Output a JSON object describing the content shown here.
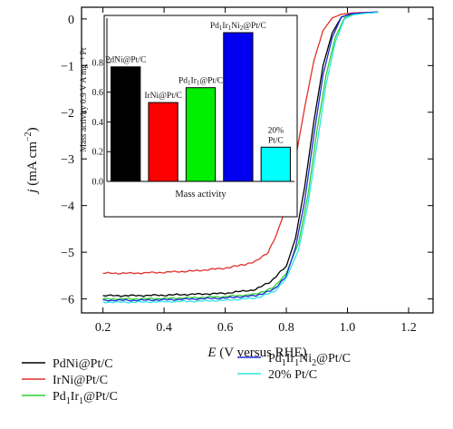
{
  "chart_data": [
    {
      "type": "line",
      "xlabel_symbol": "E",
      "xlabel_unit": "(V versus RHE)",
      "ylabel_symbol": "j",
      "ylabel_unit": "(mA cm",
      "ylabel_exp": "−2",
      "ylabel_close": ")",
      "xlim": [
        0.13,
        1.28
      ],
      "ylim": [
        -6.3,
        0.25
      ],
      "x_ticks": [
        0.2,
        0.4,
        0.6,
        0.8,
        1.0,
        1.2
      ],
      "x_tick_labels": [
        "0.2",
        "0.4",
        "0.6",
        "0.8",
        "1.0",
        "1.2"
      ],
      "y_ticks": [
        0,
        -1,
        -2,
        -3,
        -4,
        -5,
        -6
      ],
      "y_tick_labels": [
        "0",
        "−1",
        "−2",
        "−3",
        "−4",
        "−5",
        "−6"
      ],
      "legend_placement": "bottom",
      "series": [
        {
          "name": "PdNi@Pt/C",
          "name_parts": [
            [
              "PdNi@Pt/C",
              ""
            ]
          ],
          "color": "#000000",
          "x": [
            0.2,
            0.3,
            0.4,
            0.5,
            0.6,
            0.7,
            0.75,
            0.8,
            0.83,
            0.86,
            0.89,
            0.92,
            0.95,
            0.98,
            1.01,
            1.05,
            1.1
          ],
          "y": [
            -5.93,
            -5.93,
            -5.92,
            -5.9,
            -5.88,
            -5.8,
            -5.62,
            -5.3,
            -4.7,
            -3.6,
            -2.2,
            -1.0,
            -0.3,
            0.04,
            0.1,
            0.12,
            0.14
          ]
        },
        {
          "name": "IrNi@Pt/C",
          "name_parts": [
            [
              "IrNi@Pt/C",
              ""
            ]
          ],
          "color": "#e0312b",
          "x": [
            0.2,
            0.3,
            0.4,
            0.5,
            0.6,
            0.65,
            0.7,
            0.74,
            0.77,
            0.8,
            0.83,
            0.86,
            0.89,
            0.92,
            0.95,
            0.98,
            1.02,
            1.1
          ],
          "y": [
            -5.45,
            -5.45,
            -5.43,
            -5.4,
            -5.34,
            -5.28,
            -5.2,
            -5.0,
            -4.6,
            -4.0,
            -3.0,
            -1.9,
            -0.9,
            -0.25,
            0.02,
            0.1,
            0.13,
            0.15
          ]
        },
        {
          "name": "Pd1Ir1@Pt/C",
          "name_parts": [
            [
              "Pd",
              ""
            ],
            [
              "1",
              "sub"
            ],
            [
              "Ir",
              ""
            ],
            [
              "1",
              "sub"
            ],
            [
              "@Pt/C",
              ""
            ]
          ],
          "color": "#2fd12f",
          "x": [
            0.2,
            0.3,
            0.4,
            0.5,
            0.6,
            0.7,
            0.76,
            0.8,
            0.84,
            0.87,
            0.9,
            0.93,
            0.96,
            0.99,
            1.02,
            1.06,
            1.1
          ],
          "y": [
            -6.0,
            -6.0,
            -5.99,
            -5.97,
            -5.95,
            -5.9,
            -5.75,
            -5.45,
            -4.8,
            -3.8,
            -2.4,
            -1.2,
            -0.4,
            0.02,
            0.1,
            0.13,
            0.15
          ]
        },
        {
          "name": "Pd1Ir1Ni2@Pt/C",
          "name_parts": [
            [
              "Pd",
              ""
            ],
            [
              "1",
              "sub"
            ],
            [
              "Ir",
              ""
            ],
            [
              "1",
              "sub"
            ],
            [
              "Ni",
              ""
            ],
            [
              "2",
              "sub"
            ],
            [
              "@Pt/C",
              ""
            ]
          ],
          "color": "#1c2bd9",
          "x": [
            0.2,
            0.3,
            0.4,
            0.5,
            0.6,
            0.7,
            0.76,
            0.8,
            0.83,
            0.86,
            0.89,
            0.92,
            0.95,
            0.98,
            1.01,
            1.05,
            1.1
          ],
          "y": [
            -6.03,
            -6.03,
            -6.02,
            -6.0,
            -5.98,
            -5.93,
            -5.8,
            -5.5,
            -4.9,
            -3.9,
            -2.5,
            -1.2,
            -0.4,
            0.04,
            0.11,
            0.13,
            0.15
          ]
        },
        {
          "name": "20% Pt/C",
          "name_parts": [
            [
              "20% Pt/C",
              ""
            ]
          ],
          "color": "#2ee6e6",
          "x": [
            0.2,
            0.3,
            0.4,
            0.5,
            0.6,
            0.7,
            0.76,
            0.8,
            0.84,
            0.87,
            0.9,
            0.93,
            0.96,
            0.99,
            1.02,
            1.06,
            1.1
          ],
          "y": [
            -6.07,
            -6.07,
            -6.06,
            -6.05,
            -6.03,
            -5.98,
            -5.85,
            -5.55,
            -4.95,
            -4.0,
            -2.7,
            -1.4,
            -0.5,
            0.0,
            0.09,
            0.12,
            0.14
          ]
        }
      ]
    },
    {
      "type": "bar",
      "xlabel": "Mass activity",
      "ylabel": "Mass activity 0.9 V A mg⁻¹ Pt",
      "ylim": [
        0,
        1.0
      ],
      "y_ticks": [
        0.0,
        0.2,
        0.4,
        0.6,
        0.8
      ],
      "y_tick_labels": [
        "0.0",
        "0.2",
        "0.4",
        "0.6",
        "0.8"
      ],
      "categories": [
        "PdNi@Pt/C",
        "IrNi@Pt/C",
        "Pd1Ir1@Pt/C",
        "Pd1Ir1Ni2@Pt/C",
        "20% Pt/C"
      ],
      "values": [
        0.77,
        0.53,
        0.63,
        1.0,
        0.23
      ],
      "colors": [
        "#000000",
        "#ff0000",
        "#00ee00",
        "#0000ee",
        "#00ffff"
      ],
      "bar_label_lines": [
        [
          [
            [
              "PdNi@Pt/C",
              ""
            ]
          ]
        ],
        [
          [
            [
              "IrNi@Pt/C",
              ""
            ]
          ]
        ],
        [
          [
            [
              "Pd",
              ""
            ],
            [
              "1",
              "sub"
            ],
            [
              "Ir",
              ""
            ],
            [
              "1",
              "sub"
            ],
            [
              "@Pt/C",
              ""
            ]
          ]
        ],
        [
          [
            [
              "Pd",
              ""
            ],
            [
              "1",
              "sub"
            ],
            [
              "Ir",
              ""
            ],
            [
              "1",
              "sub"
            ],
            [
              "Ni",
              ""
            ],
            [
              "2",
              "sub"
            ],
            [
              "@Pt/C",
              ""
            ]
          ]
        ],
        [
          [
            [
              "20%",
              ""
            ]
          ],
          [
            [
              "Pt/C",
              ""
            ]
          ]
        ]
      ]
    }
  ]
}
